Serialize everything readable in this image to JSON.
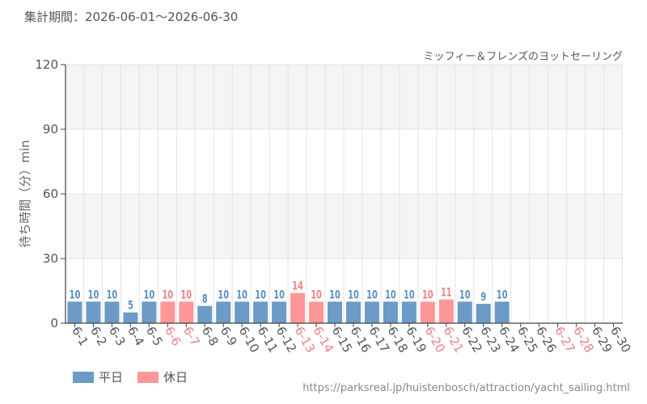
{
  "header": {
    "period_text": "集計期間：2026-06-01～2026-06-30"
  },
  "legend": {
    "weekday_label": "平日",
    "holiday_label": "休日"
  },
  "footer": {
    "source_url": "https://parksreal.jp/huistenbosch/attraction/yacht_sailing.html"
  },
  "colors": {
    "weekday": "#6b9bc6",
    "holiday": "#ff9697",
    "weekday_text": "#5b8cbe",
    "holiday_text": "#f08080",
    "band": "#f4f4f4",
    "grid": "#e3e3e3",
    "axis": "#444444"
  },
  "chart_data": {
    "type": "bar",
    "title": "ミッフィー＆フレンズのヨットセーリング",
    "ylabel": "待ち時間（分）min",
    "xlabel": "",
    "ylim": [
      0,
      120
    ],
    "yticks": [
      0,
      30,
      60,
      90,
      120
    ],
    "grid": true,
    "legend_position": "bottom-left",
    "categories": [
      "6-1",
      "6-2",
      "6-3",
      "6-4",
      "6-5",
      "6-6",
      "6-7",
      "6-8",
      "6-9",
      "6-10",
      "6-11",
      "6-12",
      "6-13",
      "6-14",
      "6-15",
      "6-16",
      "6-17",
      "6-18",
      "6-19",
      "6-20",
      "6-21",
      "6-22",
      "6-23",
      "6-24",
      "6-25",
      "6-26",
      "6-27",
      "6-28",
      "6-29",
      "6-30"
    ],
    "values": [
      10,
      10,
      10,
      5,
      10,
      10,
      10,
      8,
      10,
      10,
      10,
      10,
      14,
      10,
      10,
      10,
      10,
      10,
      10,
      10,
      11,
      10,
      9,
      10,
      null,
      null,
      null,
      null,
      null,
      null
    ],
    "day_type": [
      "weekday",
      "weekday",
      "weekday",
      "weekday",
      "weekday",
      "holiday",
      "holiday",
      "weekday",
      "weekday",
      "weekday",
      "weekday",
      "weekday",
      "holiday",
      "holiday",
      "weekday",
      "weekday",
      "weekday",
      "weekday",
      "weekday",
      "holiday",
      "holiday",
      "weekday",
      "weekday",
      "weekday",
      "weekday",
      "weekday",
      "holiday",
      "holiday",
      "weekday",
      "weekday"
    ]
  }
}
